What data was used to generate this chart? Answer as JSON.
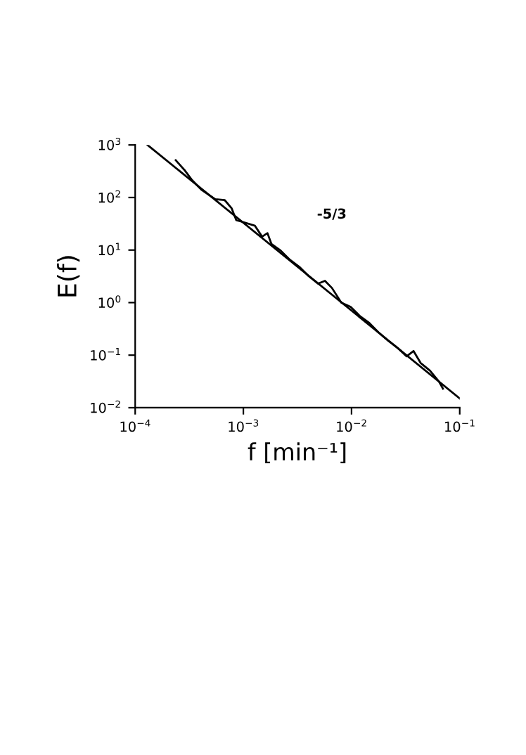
{
  "chart_data": {
    "type": "line",
    "xlabel": "f [min⁻¹]",
    "ylabel": "E(f)",
    "log": "xy",
    "grid": false,
    "legend": false,
    "xlim": [
      0.0001,
      0.1
    ],
    "ylim": [
      0.01,
      1000
    ],
    "xticks": [
      {
        "value": 0.0001,
        "label": "10$^{−4}$"
      },
      {
        "value": 0.001,
        "label": "10$^{−3}$"
      },
      {
        "value": 0.01,
        "label": "10$^{−2}$"
      },
      {
        "value": 0.1,
        "label": "10$^{−1}$"
      }
    ],
    "yticks": [
      {
        "value": 0.01,
        "label": "10$^{−2}$"
      },
      {
        "value": 0.1,
        "label": "10$^{−1}$"
      },
      {
        "value": 1,
        "label": "10$^{0}$"
      },
      {
        "value": 10,
        "label": "10$^{1}$"
      },
      {
        "value": 100,
        "label": "10$^{2}$"
      },
      {
        "value": 1000,
        "label": "10$^{3}$"
      }
    ],
    "annotations": [
      "-5/3"
    ],
    "series": [
      {
        "color": "#000000",
        "x": [
          0.000237,
          0.000289,
          0.000336,
          0.000409,
          0.00055,
          0.000673,
          0.00078,
          0.00086,
          0.001,
          0.00128,
          0.00149,
          0.00167,
          0.00182,
          0.00221,
          0.0027,
          0.00329,
          0.00401,
          0.0049,
          0.00568,
          0.00659,
          0.00804,
          0.0098,
          0.012,
          0.0146,
          0.0178,
          0.0217,
          0.0264,
          0.0323,
          0.0374,
          0.0435,
          0.053,
          0.0646,
          0.07
        ],
        "values": [
          513,
          324,
          214,
          141,
          93,
          89,
          62,
          37,
          34,
          29,
          18,
          21,
          13,
          9.8,
          6.5,
          4.8,
          3.2,
          2.3,
          2.6,
          1.9,
          1.0,
          0.83,
          0.55,
          0.41,
          0.27,
          0.19,
          0.14,
          0.095,
          0.12,
          0.071,
          0.051,
          0.031,
          0.023
        ]
      },
      {
        "color": "#000000",
        "x": [
          0.00013,
          0.1
        ],
        "values": [
          1000,
          0.015
        ]
      }
    ]
  }
}
